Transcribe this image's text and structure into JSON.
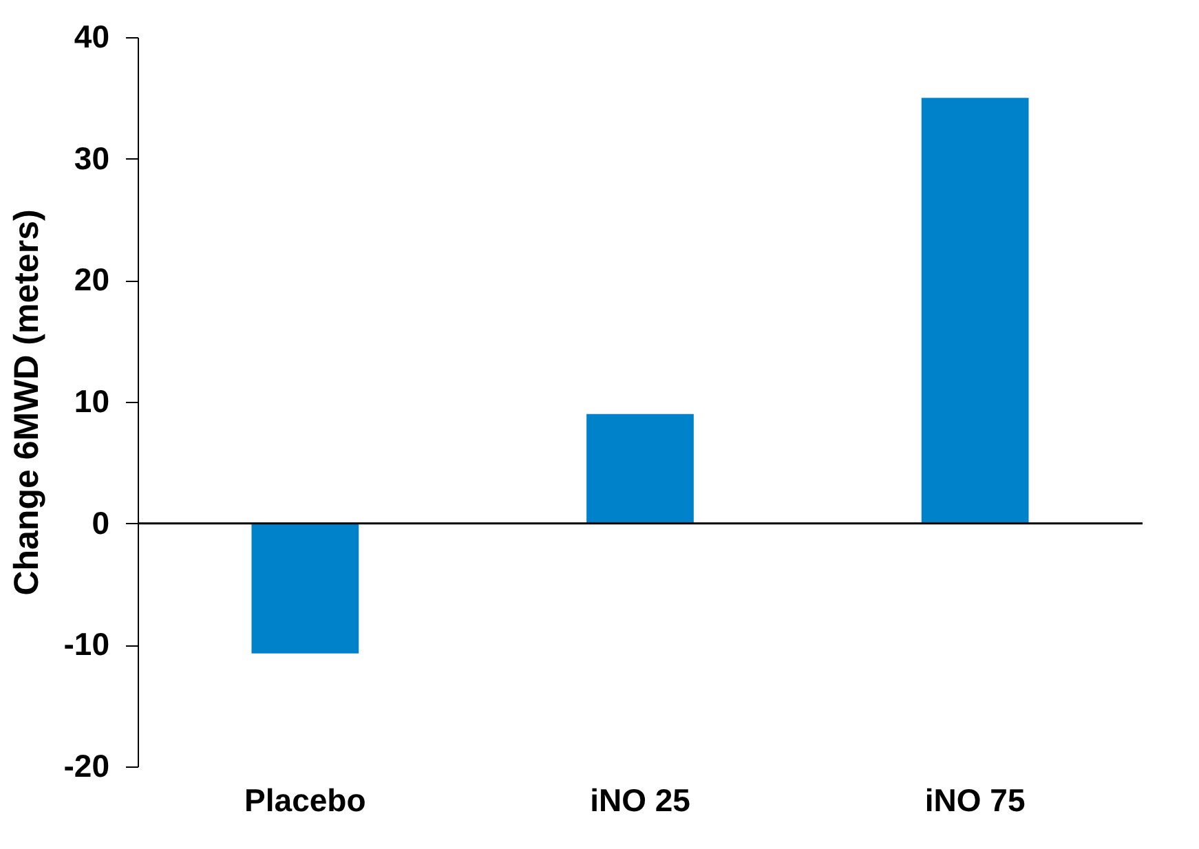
{
  "chart_data": {
    "type": "bar",
    "ylabel": "Change 6MWD (meters)",
    "categories": [
      "Placebo",
      "iNO 25",
      "iNO 75"
    ],
    "values": [
      -10.7,
      9,
      35
    ],
    "color": "#0082ca",
    "ylim": [
      -20,
      40
    ],
    "yticks": [
      -20,
      -10,
      0,
      10,
      20,
      30,
      40
    ],
    "ref_lines": [
      {
        "axis": "y",
        "value": 0,
        "color": "#000000"
      }
    ],
    "grid": false
  }
}
